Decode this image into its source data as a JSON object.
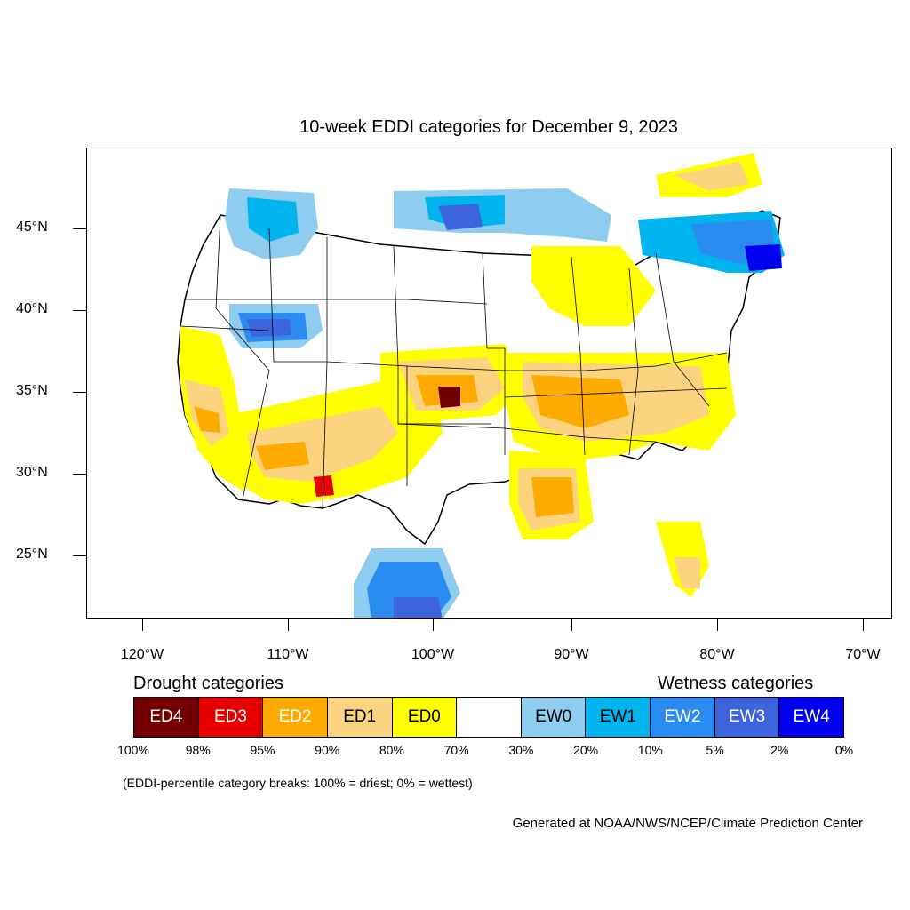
{
  "title": "10-week EDDI categories for December 9, 2023",
  "latitude_labels": [
    "45°N",
    "40°N",
    "35°N",
    "30°N",
    "25°N"
  ],
  "longitude_labels": [
    "120°W",
    "110°W",
    "100°W",
    "90°W",
    "80°W",
    "70°W"
  ],
  "legend": {
    "drought_title": "Drought categories",
    "wetness_title": "Wetness categories",
    "categories": [
      {
        "label": "ED4",
        "color": "#730000",
        "text_color": "#ffffff"
      },
      {
        "label": "ED3",
        "color": "#e60000",
        "text_color": "#ffffff"
      },
      {
        "label": "ED2",
        "color": "#ffaa00",
        "text_color": "#ffffff"
      },
      {
        "label": "ED1",
        "color": "#fcd37f",
        "text_color": "#000000"
      },
      {
        "label": "ED0",
        "color": "#ffff00",
        "text_color": "#000000"
      },
      {
        "label": "",
        "color": "#ffffff",
        "text_color": "#000000"
      },
      {
        "label": "EW0",
        "color": "#8ecdf0",
        "text_color": "#000000"
      },
      {
        "label": "EW1",
        "color": "#00b4f0",
        "text_color": "#000000"
      },
      {
        "label": "EW2",
        "color": "#2a8cf0",
        "text_color": "#ffffff"
      },
      {
        "label": "EW3",
        "color": "#3c64dc",
        "text_color": "#ffffff"
      },
      {
        "label": "EW4",
        "color": "#0000f0",
        "text_color": "#ffffff"
      }
    ],
    "percentiles": [
      "100%",
      "98%",
      "95%",
      "90%",
      "80%",
      "70%",
      "30%",
      "20%",
      "10%",
      "5%",
      "2%",
      "0%"
    ]
  },
  "note": "(EDDI-percentile category breaks: 100% = driest; 0% = wettest)",
  "credit": "Generated at NOAA/NWS/NCEP/Climate Prediction Center"
}
